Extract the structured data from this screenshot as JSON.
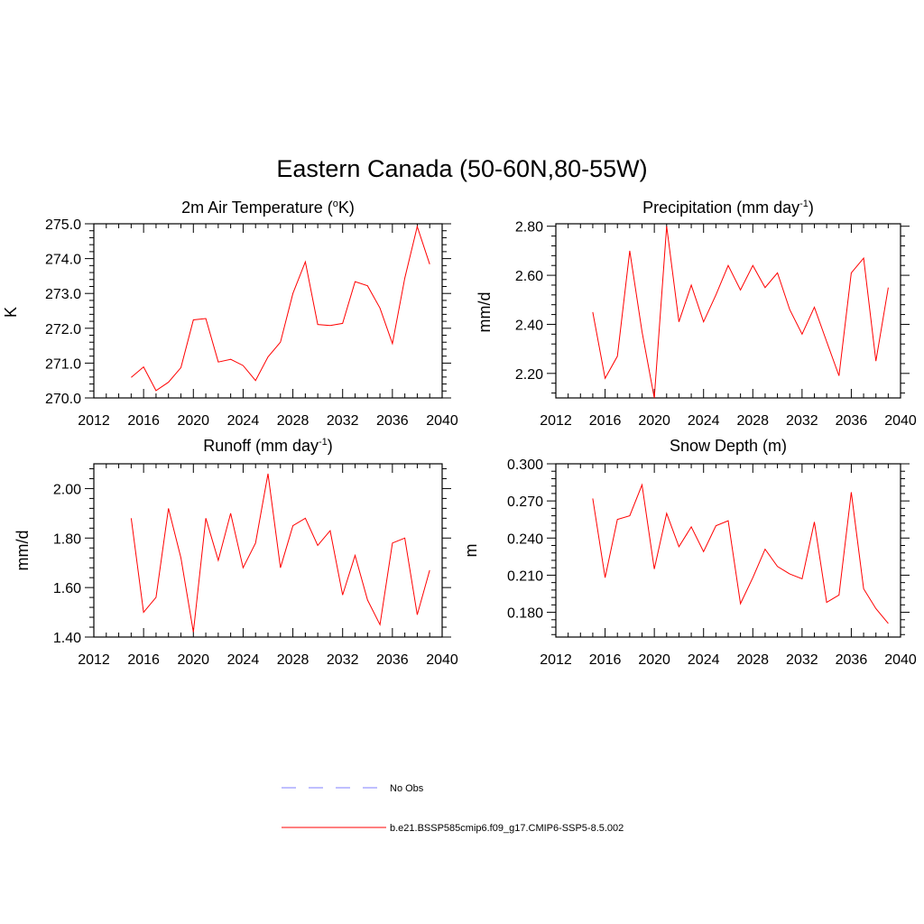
{
  "title": "Eastern Canada (50-60N,80-55W)",
  "legend": {
    "obs_label": "No Obs",
    "obs_color": "#9999ff",
    "model_label": "b.e21.BSSP585cmip6.f09_g17.CMIP6-SSP5-8.5.002",
    "model_color": "#ff0000"
  },
  "panels": [
    {
      "title_main": "2m Air Temperature (",
      "title_sup": "o",
      "title_tail": "K)",
      "ylabel": "K",
      "xticks": [
        "2012",
        "2016",
        "2020",
        "2024",
        "2028",
        "2032",
        "2036",
        "2040"
      ],
      "yticks": [
        "270.0",
        "271.0",
        "272.0",
        "273.0",
        "274.0",
        "275.0"
      ]
    },
    {
      "title_main": "Precipitation (mm day",
      "title_sup": "-1",
      "title_tail": ")",
      "ylabel": "mm/d",
      "xticks": [
        "2012",
        "2016",
        "2020",
        "2024",
        "2028",
        "2032",
        "2036",
        "2040"
      ],
      "yticks": [
        "2.20",
        "2.40",
        "2.60",
        "2.80"
      ]
    },
    {
      "title_main": "Runoff (mm day",
      "title_sup": "-1",
      "title_tail": ")",
      "ylabel": "mm/d",
      "xticks": [
        "2012",
        "2016",
        "2020",
        "2024",
        "2028",
        "2032",
        "2036",
        "2040"
      ],
      "yticks": [
        "1.40",
        "1.60",
        "1.80",
        "2.00"
      ]
    },
    {
      "title_main": "Snow Depth (m)",
      "title_sup": "",
      "title_tail": "",
      "ylabel": "m",
      "xticks": [
        "2012",
        "2016",
        "2020",
        "2024",
        "2028",
        "2032",
        "2036",
        "2040"
      ],
      "yticks": [
        "0.180",
        "0.210",
        "0.240",
        "0.270",
        "0.300"
      ]
    }
  ],
  "chart_data": [
    {
      "type": "line",
      "title": "2m Air Temperature (oK)",
      "ylabel": "K",
      "xlim": [
        2012,
        2040
      ],
      "ylim": [
        270.0,
        275.0
      ],
      "x": [
        2015,
        2016,
        2017,
        2018,
        2019,
        2020,
        2021,
        2022,
        2023,
        2024,
        2025,
        2026,
        2027,
        2028,
        2029,
        2030,
        2031,
        2032,
        2033,
        2034,
        2035,
        2036,
        2037,
        2038,
        2039
      ],
      "series": [
        {
          "values": [
            270.59,
            270.89,
            270.21,
            270.45,
            270.87,
            272.24,
            272.28,
            271.03,
            271.11,
            270.93,
            270.5,
            271.18,
            271.6,
            273.0,
            273.91,
            272.11,
            272.08,
            272.14,
            273.34,
            273.22,
            272.58,
            271.56,
            273.44,
            274.92,
            273.84
          ],
          "color": "#ff0000"
        }
      ]
    },
    {
      "type": "line",
      "title": "Precipitation (mm day-1)",
      "ylabel": "mm/d",
      "xlim": [
        2012,
        2040
      ],
      "ylim": [
        2.1,
        2.81
      ],
      "x": [
        2015,
        2016,
        2017,
        2018,
        2019,
        2020,
        2021,
        2022,
        2023,
        2024,
        2025,
        2026,
        2027,
        2028,
        2029,
        2030,
        2031,
        2032,
        2033,
        2034,
        2035,
        2036,
        2037,
        2038,
        2039
      ],
      "series": [
        {
          "values": [
            2.45,
            2.18,
            2.27,
            2.7,
            2.37,
            2.1,
            2.8,
            2.41,
            2.56,
            2.41,
            2.52,
            2.64,
            2.54,
            2.64,
            2.55,
            2.61,
            2.46,
            2.36,
            2.47,
            2.33,
            2.19,
            2.61,
            2.67,
            2.25,
            2.55
          ],
          "color": "#ff0000"
        }
      ]
    },
    {
      "type": "line",
      "title": "Runoff (mm day-1)",
      "ylabel": "mm/d",
      "xlim": [
        2012,
        2040
      ],
      "ylim": [
        1.4,
        2.1
      ],
      "x": [
        2015,
        2016,
        2017,
        2018,
        2019,
        2020,
        2021,
        2022,
        2023,
        2024,
        2025,
        2026,
        2027,
        2028,
        2029,
        2030,
        2031,
        2032,
        2033,
        2034,
        2035,
        2036,
        2037,
        2038,
        2039
      ],
      "series": [
        {
          "values": [
            1.88,
            1.5,
            1.56,
            1.92,
            1.72,
            1.42,
            1.88,
            1.71,
            1.9,
            1.68,
            1.78,
            2.06,
            1.68,
            1.85,
            1.88,
            1.77,
            1.83,
            1.57,
            1.73,
            1.55,
            1.45,
            1.78,
            1.8,
            1.49,
            1.67
          ],
          "color": "#ff0000"
        }
      ]
    },
    {
      "type": "line",
      "title": "Snow Depth (m)",
      "ylabel": "m",
      "xlim": [
        2012,
        2040
      ],
      "ylim": [
        0.16,
        0.3
      ],
      "x": [
        2015,
        2016,
        2017,
        2018,
        2019,
        2020,
        2021,
        2022,
        2023,
        2024,
        2025,
        2026,
        2027,
        2028,
        2029,
        2030,
        2031,
        2032,
        2033,
        2034,
        2035,
        2036,
        2037,
        2038,
        2039
      ],
      "series": [
        {
          "values": [
            0.272,
            0.208,
            0.255,
            0.258,
            0.283,
            0.215,
            0.26,
            0.233,
            0.249,
            0.229,
            0.25,
            0.254,
            0.187,
            0.208,
            0.231,
            0.217,
            0.211,
            0.207,
            0.253,
            0.188,
            0.194,
            0.277,
            0.199,
            0.183,
            0.171
          ],
          "color": "#ff0000"
        }
      ]
    }
  ]
}
